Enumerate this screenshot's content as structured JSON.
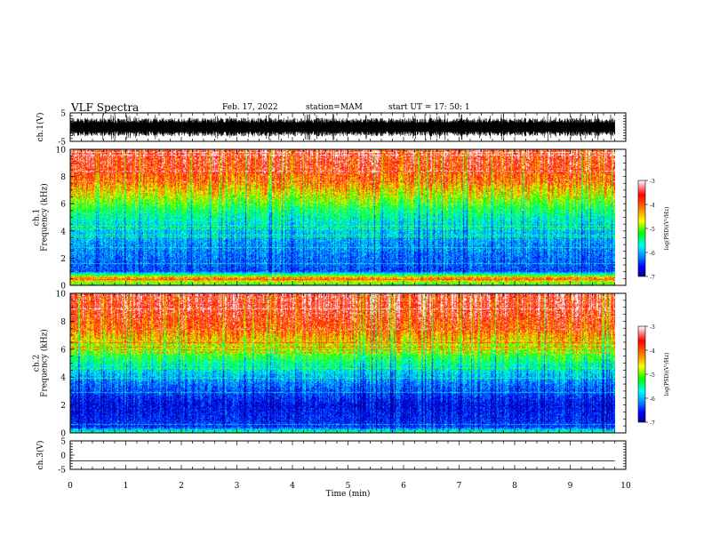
{
  "header": {
    "title": "VLF Spectra",
    "date": "Feb. 17, 2022",
    "station": "station=MAM",
    "start_ut": "start  UT =   17: 50: 1"
  },
  "colors": {
    "spectrogram_scale": [
      "#00008a",
      "#0000ff",
      "#0080ff",
      "#00ffff",
      "#00ff00",
      "#ffff00",
      "#ff8000",
      "#ff0000",
      "#ffffff"
    ],
    "waveform": "#000000",
    "axes": "#000000"
  },
  "chart_data": [
    {
      "type": "line",
      "panel": "ch1-waveform",
      "ylabel": "ch.1(V)",
      "ylim": [
        -5,
        5
      ],
      "yticks": [
        "5",
        "-5"
      ],
      "x": [
        0,
        10
      ],
      "description_of_series": "dense noisy waveform between about -3 and 3 V over 0-9.8 min"
    },
    {
      "type": "heatmap",
      "panel": "ch1-spectrogram",
      "ylabel": "ch.1\nFrequency (kHz)",
      "ylim": [
        0,
        10
      ],
      "yticks": [
        "0",
        "2",
        "4",
        "6",
        "8",
        "10"
      ],
      "xlim": [
        0,
        10
      ],
      "data_end_min": 9.8,
      "colorbar": {
        "label": "log(PSD)(V²/Hz)",
        "range": [
          -7,
          -3
        ],
        "ticks": [
          "-3",
          "-4",
          "-5",
          "-6",
          "-7"
        ]
      },
      "profile_khz_logpsd": [
        [
          0,
          -5.0
        ],
        [
          0.5,
          -4.0
        ],
        [
          1,
          -6.3
        ],
        [
          3,
          -6.0
        ],
        [
          4.5,
          -5.6
        ],
        [
          5.5,
          -5.2
        ],
        [
          6.5,
          -4.6
        ],
        [
          7.5,
          -4.1
        ],
        [
          8.5,
          -3.7
        ],
        [
          10,
          -3.5
        ]
      ]
    },
    {
      "type": "heatmap",
      "panel": "ch2-spectrogram",
      "ylabel": "ch.2\nFrequency (kHz)",
      "ylim": [
        0,
        10
      ],
      "yticks": [
        "0",
        "2",
        "4",
        "6",
        "8",
        "10"
      ],
      "xlim": [
        0,
        10
      ],
      "data_end_min": 9.8,
      "colorbar": {
        "label": "log(PSD)(V²/Hz)",
        "range": [
          -7,
          -3
        ],
        "ticks": [
          "-3",
          "-4",
          "-5",
          "-6",
          "-7"
        ]
      },
      "profile_khz_logpsd": [
        [
          0,
          -5.2
        ],
        [
          0.4,
          -6.4
        ],
        [
          2,
          -6.6
        ],
        [
          3.5,
          -6.1
        ],
        [
          4.5,
          -5.6
        ],
        [
          5.5,
          -5.0
        ],
        [
          6.5,
          -4.4
        ],
        [
          7.5,
          -3.9
        ],
        [
          8.5,
          -3.6
        ],
        [
          10,
          -3.4
        ]
      ]
    },
    {
      "type": "line",
      "panel": "ch3-waveform",
      "ylabel": "ch.3(V)",
      "ylim": [
        -5,
        5
      ],
      "yticks": [
        "5",
        "0",
        "-5"
      ],
      "x": [
        0,
        9.8
      ],
      "y": [
        -2,
        -2
      ]
    }
  ],
  "x_axis": {
    "label": "Time (min)",
    "ticks": [
      "0",
      "1",
      "2",
      "3",
      "4",
      "5",
      "6",
      "7",
      "8",
      "9",
      "10"
    ]
  }
}
